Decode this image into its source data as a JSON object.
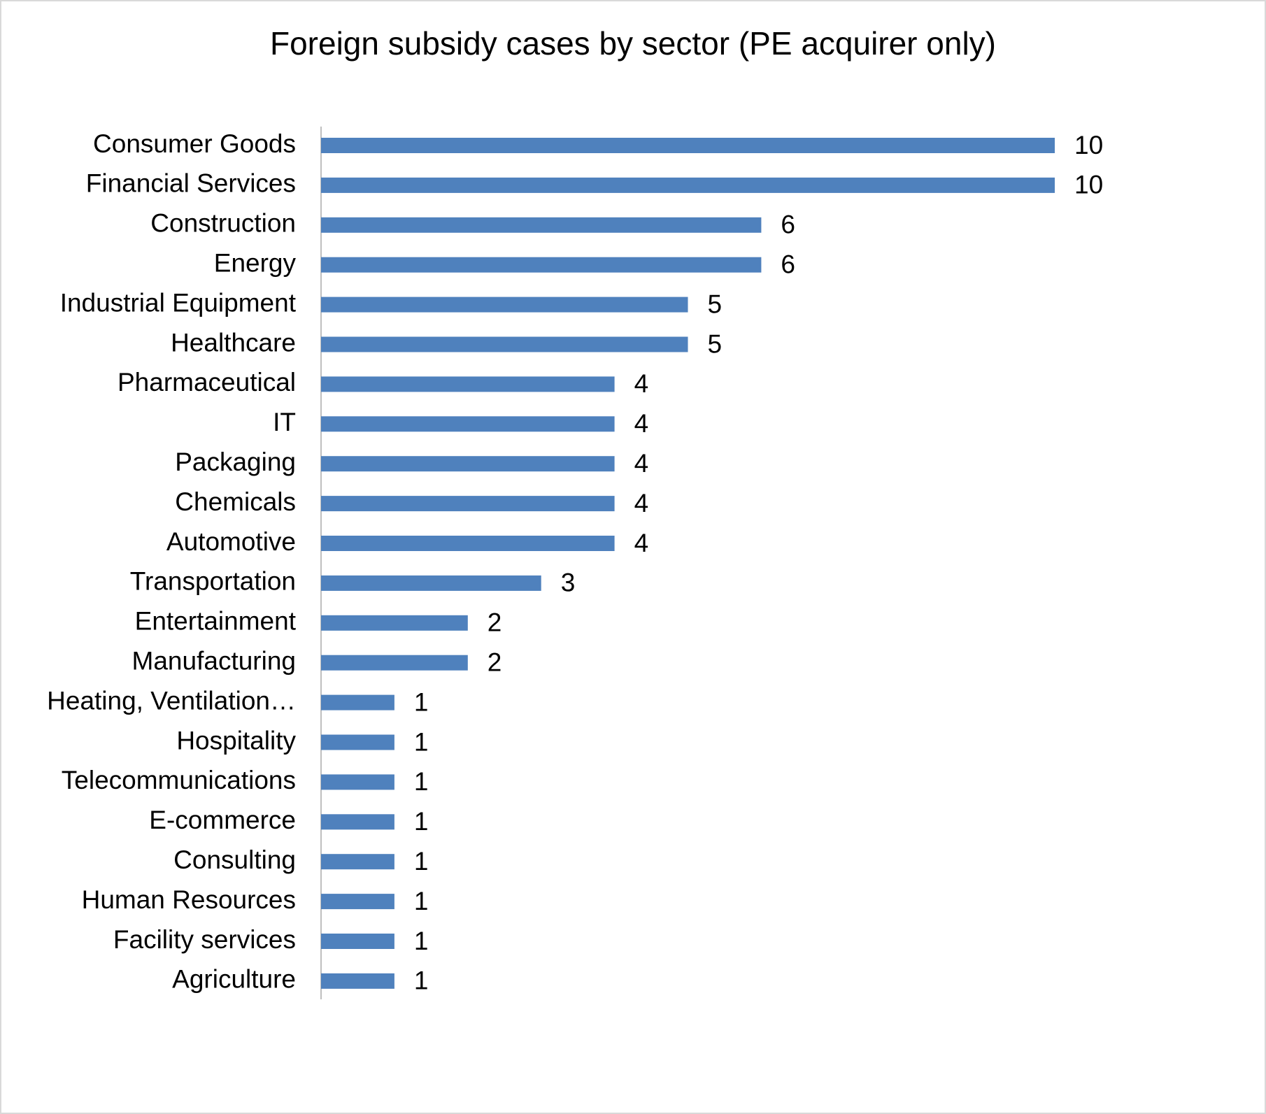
{
  "chart_data": {
    "type": "bar",
    "orientation": "horizontal",
    "title": "Foreign subsidy cases by sector (PE acquirer only)",
    "categories": [
      "Consumer Goods",
      "Financial Services",
      "Construction",
      "Energy",
      "Industrial Equipment",
      "Healthcare",
      "Pharmaceutical",
      "IT",
      "Packaging",
      "Chemicals",
      "Automotive",
      "Transportation",
      "Entertainment",
      "Manufacturing",
      "Heating, Ventilation…",
      "Hospitality",
      "Telecommunications",
      "E-commerce",
      "Consulting",
      "Human Resources",
      "Facility services",
      "Agriculture"
    ],
    "values": [
      10,
      10,
      6,
      6,
      5,
      5,
      4,
      4,
      4,
      4,
      4,
      3,
      2,
      2,
      1,
      1,
      1,
      1,
      1,
      1,
      1,
      1
    ],
    "color": "#4f81bd",
    "grid": false
  }
}
